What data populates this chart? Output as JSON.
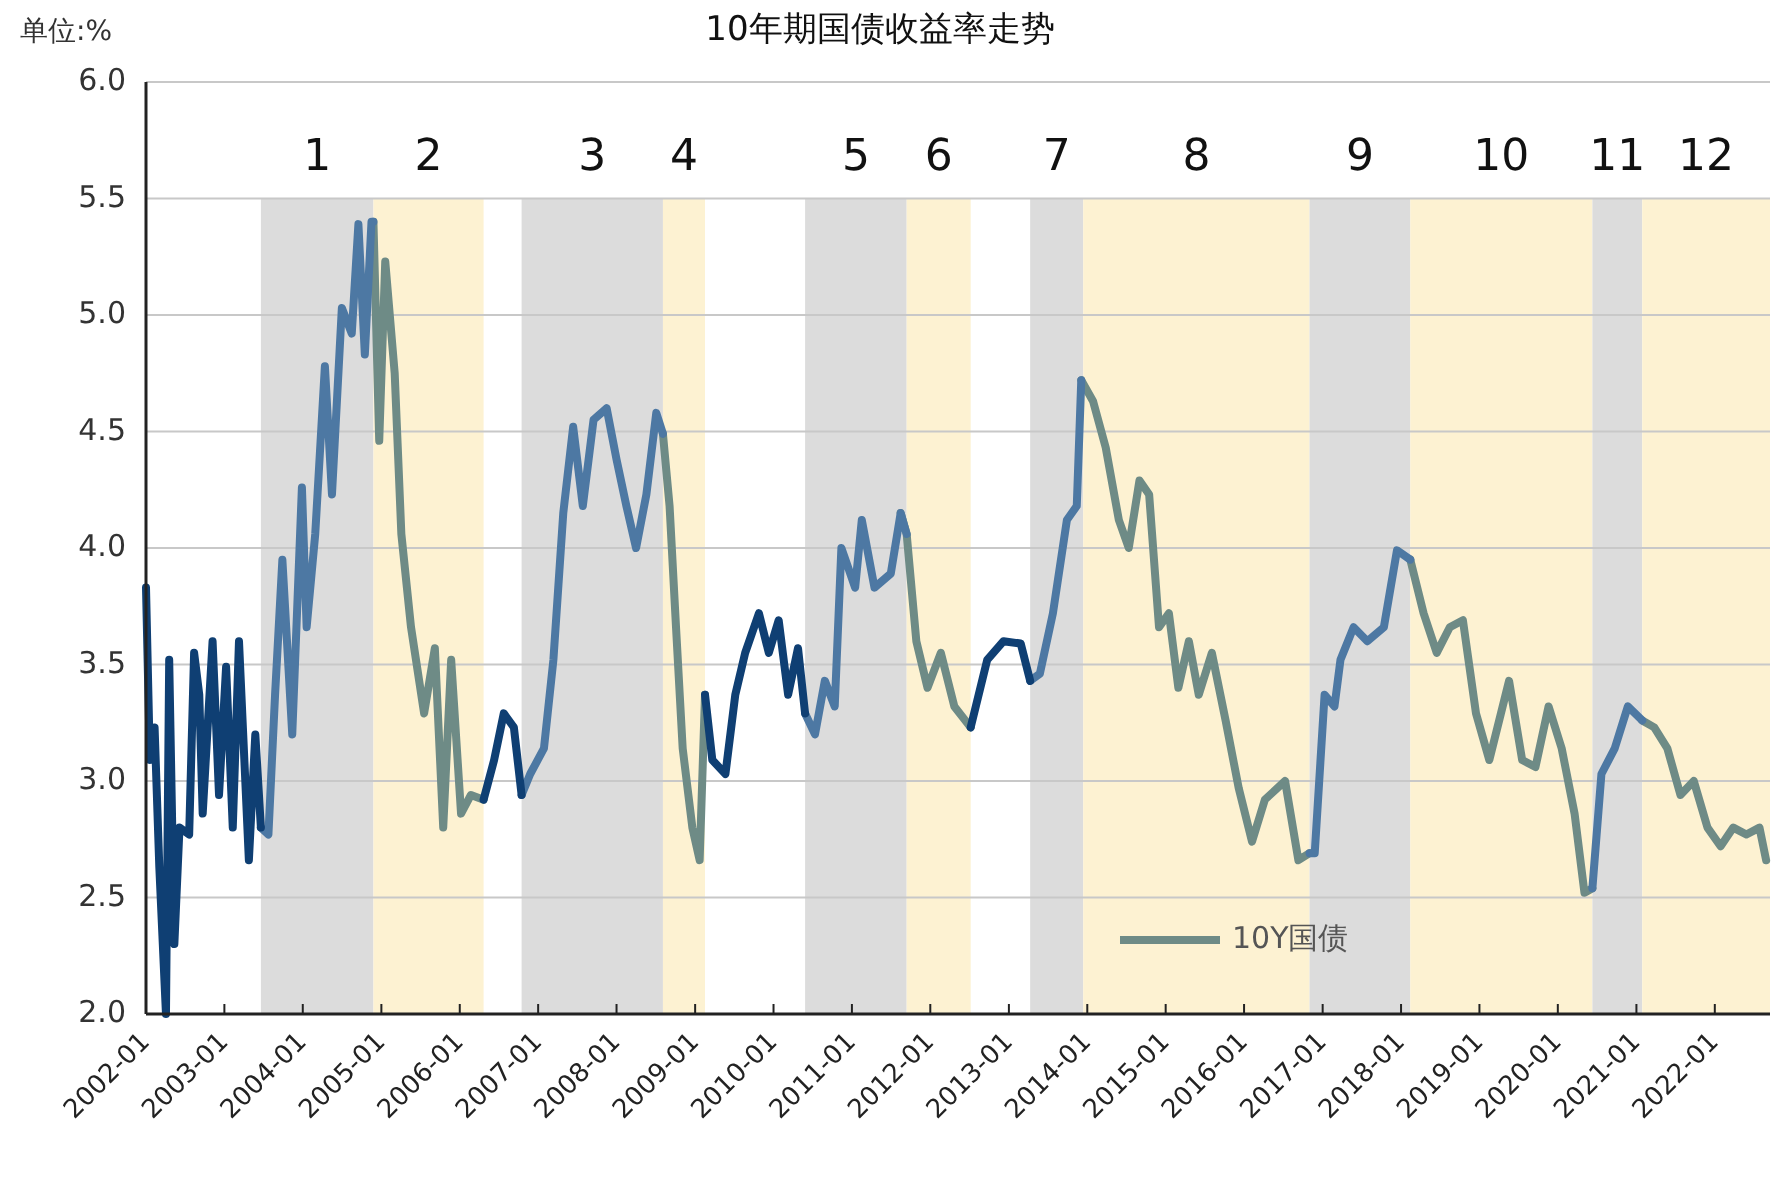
{
  "chart_data": {
    "type": "line",
    "title": "10年期国债收益率走势",
    "ylabel": "单位:%",
    "xlim": [
      "2002-01-01",
      "2022-09-15"
    ],
    "ylim": [
      2,
      6
    ],
    "yticks": [
      {
        "value": 2,
        "label": "2.0"
      },
      {
        "value": 2.5,
        "label": "2.5"
      },
      {
        "value": 3,
        "label": "3.0"
      },
      {
        "value": 3.5,
        "label": "3.5"
      },
      {
        "value": 4,
        "label": "4.0"
      },
      {
        "value": 4.5,
        "label": "4.5"
      },
      {
        "value": 5,
        "label": "5.0"
      },
      {
        "value": 5.5,
        "label": "5.5"
      },
      {
        "value": 6,
        "label": "6.0"
      }
    ],
    "xticks": [
      {
        "value": "2002-01",
        "label": "2002-01"
      },
      {
        "value": "2003-01",
        "label": "2003-01"
      },
      {
        "value": "2004-01",
        "label": "2004-01"
      },
      {
        "value": "2005-01",
        "label": "2005-01"
      },
      {
        "value": "2006-01",
        "label": "2006-01"
      },
      {
        "value": "2007-01",
        "label": "2007-01"
      },
      {
        "value": "2008-01",
        "label": "2008-01"
      },
      {
        "value": "2009-01",
        "label": "2009-01"
      },
      {
        "value": "2010-01",
        "label": "2010-01"
      },
      {
        "value": "2011-01",
        "label": "2011-01"
      },
      {
        "value": "2012-01",
        "label": "2012-01"
      },
      {
        "value": "2013-01",
        "label": "2013-01"
      },
      {
        "value": "2014-01",
        "label": "2014-01"
      },
      {
        "value": "2015-01",
        "label": "2015-01"
      },
      {
        "value": "2016-01",
        "label": "2016-01"
      },
      {
        "value": "2017-01",
        "label": "2017-01"
      },
      {
        "value": "2018-01",
        "label": "2018-01"
      },
      {
        "value": "2019-01",
        "label": "2019-01"
      },
      {
        "value": "2020-01",
        "label": "2020-01"
      },
      {
        "value": "2021-01",
        "label": "2021-01"
      },
      {
        "value": "2022-01",
        "label": "2022-01"
      }
    ],
    "grid": "y",
    "legend": "bottom",
    "marker": "none",
    "line_style": "solid",
    "bands": [
      {
        "axis": "x",
        "from": "2003-06-20",
        "to": "2004-11-25",
        "label": "1",
        "color": "#dcdcdc"
      },
      {
        "axis": "x",
        "from": "2004-11-25",
        "to": "2006-04-22",
        "label": "2",
        "color": "#fdf2d2"
      },
      {
        "axis": "x",
        "from": "2006-10-16",
        "to": "2008-08-04",
        "label": "3",
        "color": "#dcdcdc"
      },
      {
        "axis": "x",
        "from": "2008-08-04",
        "to": "2009-02-16",
        "label": "4",
        "color": "#fdf2d2"
      },
      {
        "axis": "x",
        "from": "2010-05-28",
        "to": "2011-09-13",
        "label": "5",
        "color": "#dcdcdc"
      },
      {
        "axis": "x",
        "from": "2011-09-13",
        "to": "2012-07-07",
        "label": "6",
        "color": "#fdf2d2"
      },
      {
        "axis": "x",
        "from": "2013-04-10",
        "to": "2013-12-13",
        "label": "7",
        "color": "#dcdcdc"
      },
      {
        "axis": "x",
        "from": "2013-12-13",
        "to": "2016-11-01",
        "label": "8",
        "color": "#fdf2d2"
      },
      {
        "axis": "x",
        "from": "2016-11-01",
        "to": "2018-02-13",
        "label": "9",
        "color": "#dcdcdc"
      },
      {
        "axis": "x",
        "from": "2018-02-13",
        "to": "2020-06-10",
        "label": "10",
        "color": "#fdf2d2"
      },
      {
        "axis": "x",
        "from": "2020-06-10",
        "to": "2021-01-28",
        "label": "11",
        "color": "#dcdcdc"
      },
      {
        "axis": "x",
        "from": "2021-01-28",
        "to": "2022-09-15",
        "label": "12",
        "color": "#fdf2d2"
      }
    ],
    "series": [
      {
        "name": "10Y国债",
        "color": "#6e8b86",
        "x": [
          "2004-11-25",
          "2004-12-22",
          "2005-01-19",
          "2005-03-04",
          "2005-04-04",
          "2005-05-19",
          "2005-07-19",
          "2005-09-07",
          "2005-10-16",
          "2005-11-22",
          "2006-01-07",
          "2006-02-22",
          "2006-04-22",
          "2006-05-01",
          "2008-08-04",
          "2008-09-04",
          "2008-10-04",
          "2008-11-04",
          "2008-12-19",
          "2009-01-22",
          "2009-02-16",
          "2009-03-01",
          "2011-08-16",
          "2011-09-13",
          "2011-10-28",
          "2011-12-19",
          "2012-02-19",
          "2012-04-22",
          "2012-07-07",
          "2012-08-01",
          "2013-12-04",
          "2014-01-28",
          "2014-03-28",
          "2014-05-28",
          "2014-07-13",
          "2014-09-01",
          "2014-10-16",
          "2014-12-01",
          "2015-01-16",
          "2015-03-01",
          "2015-04-19",
          "2015-06-04",
          "2015-08-04",
          "2015-10-07",
          "2015-12-07",
          "2016-02-07",
          "2016-04-07",
          "2016-07-10",
          "2016-09-10",
          "2016-11-01",
          "2016-12-01",
          "2018-02-13",
          "2018-04-16",
          "2018-06-16",
          "2018-08-16",
          "2018-10-16",
          "2018-12-16",
          "2019-02-16",
          "2019-05-19",
          "2019-07-19",
          "2019-09-19",
          "2019-11-19",
          "2020-01-19",
          "2020-03-19",
          "2020-05-04",
          "2020-06-10",
          "2020-07-01",
          "2021-01-28",
          "2021-03-25",
          "2021-05-25",
          "2021-07-25",
          "2021-09-25",
          "2021-11-28",
          "2022-01-28",
          "2022-03-28",
          "2022-05-28",
          "2022-07-28",
          "2022-08-28"
        ],
        "values": [
          5.4,
          4.46,
          5.23,
          4.75,
          4.06,
          3.66,
          3.29,
          3.57,
          2.8,
          3.52,
          2.86,
          2.94,
          2.92,
          null,
          4.49,
          4.18,
          3.66,
          3.14,
          2.8,
          2.66,
          3.37,
          null,
          4.15,
          4.06,
          3.6,
          3.4,
          3.55,
          3.32,
          3.23,
          null,
          4.72,
          4.63,
          4.43,
          4.12,
          4.0,
          4.29,
          4.23,
          3.66,
          3.72,
          3.4,
          3.6,
          3.37,
          3.55,
          3.26,
          2.97,
          2.74,
          2.92,
          3.0,
          2.66,
          2.69,
          null,
          3.95,
          3.72,
          3.55,
          3.66,
          3.69,
          3.29,
          3.09,
          3.43,
          3.09,
          3.06,
          3.32,
          3.14,
          2.86,
          2.52,
          2.54,
          null,
          3.26,
          3.23,
          3.14,
          2.94,
          3.0,
          2.8,
          2.72,
          2.8,
          2.77,
          2.8,
          2.66
        ]
      },
      {
        "color": "#4d78a3",
        "x": [
          "2003-06-20",
          "2003-07-25",
          "2003-08-25",
          "2003-09-28",
          "2003-11-13",
          "2003-12-28",
          "2004-01-19",
          "2004-02-28",
          "2004-04-13",
          "2004-05-16",
          "2004-07-01",
          "2004-08-16",
          "2004-09-16",
          "2004-10-16",
          "2004-11-16",
          "2004-11-25",
          "2005-01-01",
          "2006-10-16",
          "2006-11-25",
          "2007-01-28",
          "2007-03-13",
          "2007-04-28",
          "2007-06-13",
          "2007-07-28",
          "2007-09-16",
          "2007-11-16",
          "2008-01-01",
          "2008-02-16",
          "2008-04-01",
          "2008-05-19",
          "2008-07-04",
          "2008-08-04",
          "2008-09-01",
          "2010-05-28",
          "2010-07-13",
          "2010-08-28",
          "2010-10-13",
          "2010-11-13",
          "2011-01-16",
          "2011-02-16",
          "2011-04-16",
          "2011-07-01",
          "2011-08-16",
          "2011-09-13",
          "2011-10-01",
          "2013-04-10",
          "2013-05-25",
          "2013-07-25",
          "2013-09-28",
          "2013-11-13",
          "2013-12-04",
          "2014-01-01",
          "2016-11-01",
          "2016-11-25",
          "2017-01-10",
          "2017-02-25",
          "2017-03-25",
          "2017-05-25",
          "2017-07-28",
          "2017-10-13",
          "2017-12-13",
          "2018-02-13",
          "2018-03-01",
          "2020-06-10",
          "2020-07-22",
          "2020-09-22",
          "2020-11-22",
          "2021-01-28"
        ],
        "values": [
          2.8,
          2.77,
          3.37,
          3.95,
          3.2,
          4.26,
          3.66,
          4.06,
          4.78,
          4.23,
          5.03,
          4.92,
          5.39,
          4.83,
          5.4,
          5.4,
          null,
          2.94,
          3.03,
          3.14,
          3.52,
          4.15,
          4.52,
          4.18,
          4.55,
          4.6,
          4.38,
          4.18,
          4.0,
          4.23,
          4.58,
          4.49,
          null,
          3.29,
          3.2,
          3.43,
          3.32,
          4.0,
          3.83,
          4.12,
          3.83,
          3.89,
          4.15,
          4.06,
          null,
          3.43,
          3.46,
          3.72,
          4.12,
          4.18,
          4.72,
          null,
          2.69,
          2.69,
          3.37,
          3.32,
          3.52,
          3.66,
          3.6,
          3.66,
          3.99,
          3.95,
          null,
          2.54,
          3.03,
          3.14,
          3.32,
          3.26
        ]
      },
      {
        "color": "#0f3f73",
        "x": [
          "2002-01-01",
          "2002-01-19",
          "2002-02-10",
          "2002-03-04",
          "2002-04-04",
          "2002-04-19",
          "2002-05-13",
          "2002-06-06",
          "2002-07-21",
          "2002-08-13",
          "2002-09-06",
          "2002-09-22",
          "2002-11-07",
          "2002-12-07",
          "2003-01-09",
          "2003-02-09",
          "2003-03-10",
          "2003-04-25",
          "2003-05-25",
          "2003-06-20",
          "2003-07-01",
          "2006-04-22",
          "2006-06-10",
          "2006-07-25",
          "2006-09-10",
          "2006-10-16",
          "2006-11-01",
          "2009-02-16",
          "2009-03-22",
          "2009-05-22",
          "2009-07-07",
          "2009-08-22",
          "2009-10-25",
          "2009-12-10",
          "2010-01-25",
          "2010-03-10",
          "2010-04-25",
          "2010-05-28",
          "2010-06-01",
          "2012-07-07",
          "2012-09-22",
          "2012-12-07",
          "2013-02-25",
          "2013-04-10"
        ],
        "values": [
          3.83,
          3.09,
          3.23,
          2.63,
          2.0,
          3.52,
          2.3,
          2.8,
          2.77,
          3.55,
          3.37,
          2.86,
          3.6,
          2.94,
          3.49,
          2.8,
          3.6,
          2.66,
          3.2,
          2.8,
          null,
          2.92,
          3.09,
          3.29,
          3.23,
          2.94,
          null,
          3.37,
          3.09,
          3.03,
          3.37,
          3.55,
          3.72,
          3.55,
          3.69,
          3.37,
          3.57,
          3.29,
          null,
          3.23,
          3.52,
          3.6,
          3.59,
          3.43
        ]
      }
    ]
  }
}
